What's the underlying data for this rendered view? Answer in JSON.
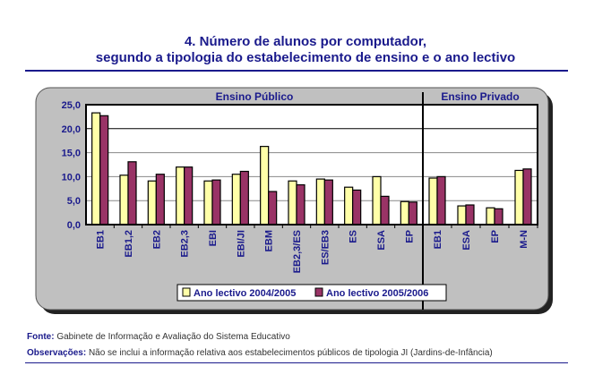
{
  "title_line1": "4. Número de alunos por computador,",
  "title_line2": "segundo a tipologia do estabelecimento de ensino e o ano lectivo",
  "footer": {
    "source_label": "Fonte:",
    "source_text": "Gabinete de Informação e Avaliação do Sistema Educativo",
    "notes_label": "Observações:",
    "notes_text": "Não se inclui a informação relativa aos estabelecimentos públicos de tipologia JI (Jardins-de-Infância)"
  },
  "chart_data": {
    "type": "bar",
    "groups": [
      {
        "label": "Ensino Público",
        "categories": [
          "EB1",
          "EB1,2",
          "EB2",
          "EB2,3",
          "EBI",
          "EBI/JI",
          "EBM",
          "EB2,3/ES",
          "ES/EB3",
          "ES",
          "ESA",
          "EP"
        ]
      },
      {
        "label": "Ensino Privado",
        "categories": [
          "EB1",
          "ESA",
          "EP",
          "M-N"
        ]
      }
    ],
    "series": [
      {
        "name": "Ano lectivo 2004/2005",
        "color": "#ffffa8",
        "values": [
          23.3,
          10.3,
          9.1,
          12.0,
          9.1,
          10.5,
          16.3,
          9.1,
          9.5,
          7.8,
          10.0,
          4.8,
          9.7,
          3.9,
          3.5,
          11.3
        ]
      },
      {
        "name": "Ano lectivo 2005/2006",
        "color": "#993366",
        "values": [
          22.7,
          13.1,
          10.5,
          12.0,
          9.3,
          11.1,
          6.9,
          8.3,
          9.3,
          7.2,
          5.9,
          4.7,
          10.0,
          4.1,
          3.3,
          11.6
        ]
      }
    ],
    "yticks": [
      "0,0",
      "5,0",
      "10,0",
      "15,0",
      "20,0",
      "25,0"
    ],
    "ylim": [
      0,
      25
    ],
    "grid": true,
    "legend": "bottom"
  }
}
